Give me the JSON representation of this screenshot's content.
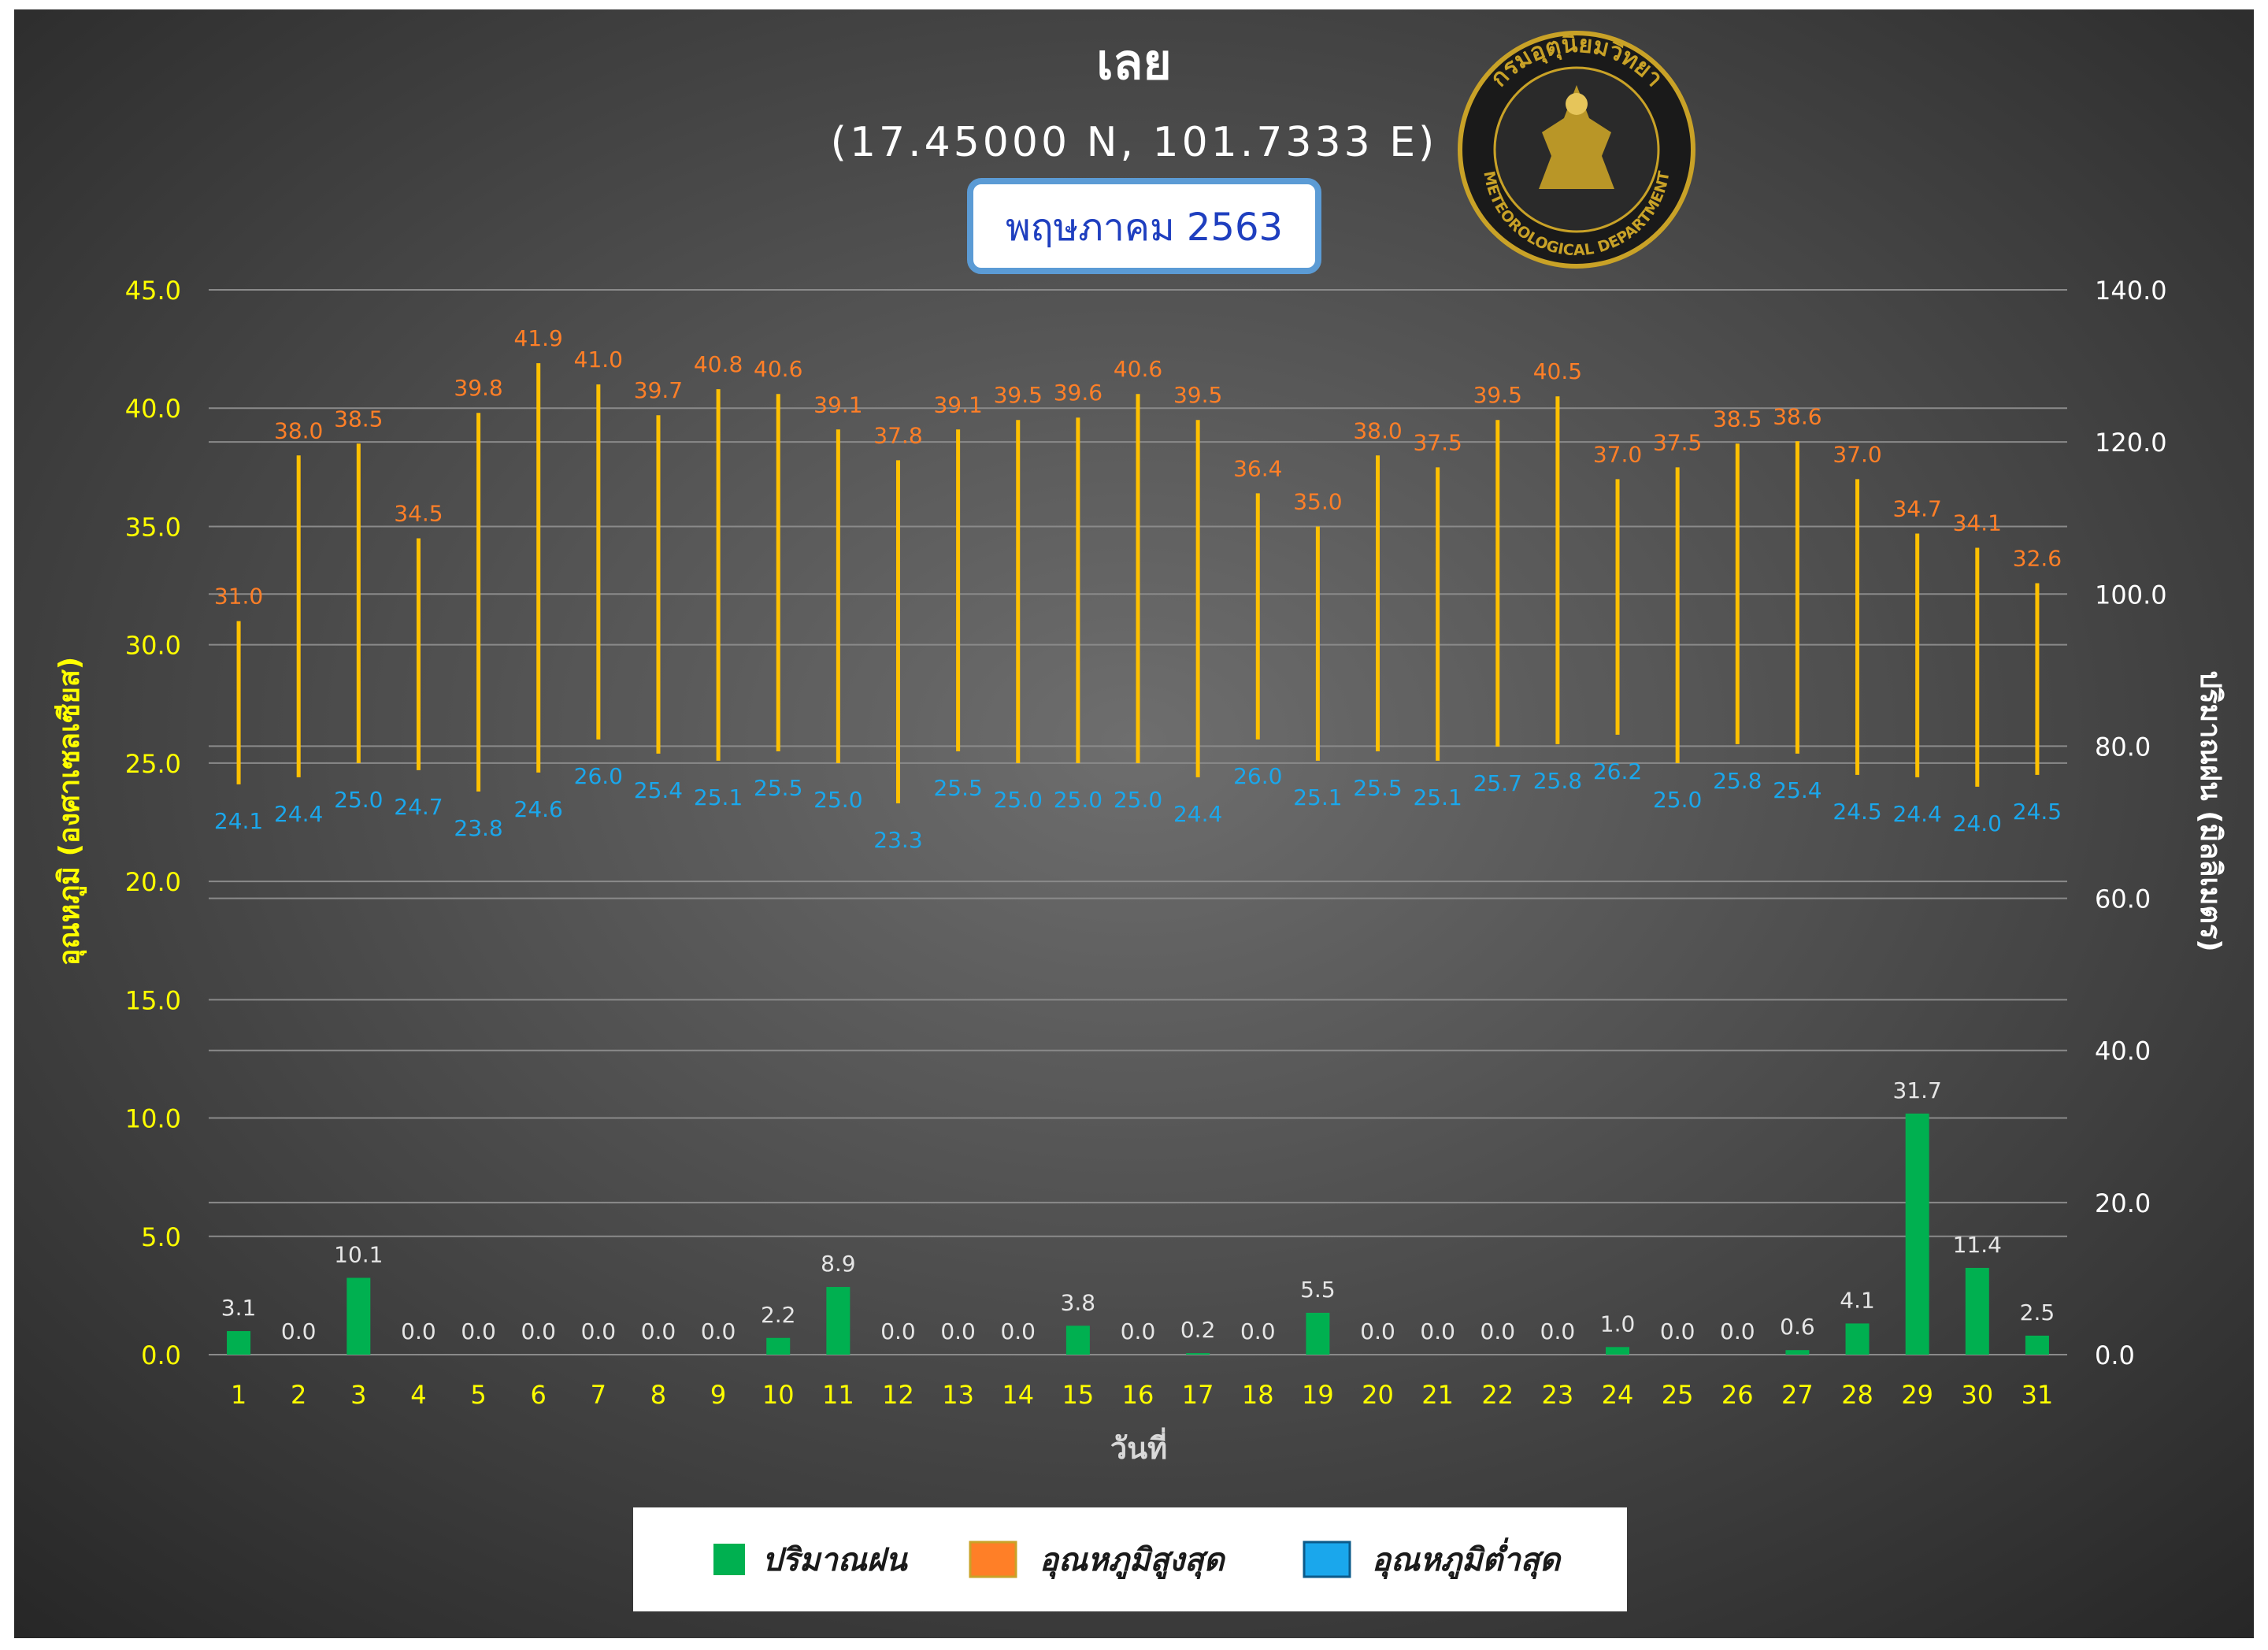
{
  "title": "เลย",
  "coordinates": "(17.45000 N, 101.7333 E)",
  "period": "พฤษภาคม 2563",
  "logo": {
    "text_top": "กรมอุตุนิยมวิทยา",
    "text_bottom": "METEOROLOGICAL DEPARTMENT"
  },
  "colors": {
    "background_center": "#6a6a6a",
    "background_edge": "#2a2a2a",
    "axis_left_text": "#ffff00",
    "axis_right_text": "#ffffff",
    "grid": "#8a8a8a",
    "range_line": "#ffc000",
    "max_label": "#ff7f27",
    "min_label": "#1aa7ec",
    "rain_bar": "#00b050",
    "rain_label": "#e6e6e6",
    "period_border": "#5b9bd5",
    "period_text": "#1f3fbf",
    "logo_gold": "#c9a227"
  },
  "chart_data": {
    "type": "bar",
    "xlabel": "วันที่",
    "ylabel_left": "อุณหภูมิ (องศาเซลเซียส)",
    "ylabel_right": "ปริมาณฝน (มิลลิเมตร)",
    "ylim_left": [
      0,
      45
    ],
    "ylim_right": [
      0,
      140
    ],
    "yticks_left": [
      "0.0",
      "5.0",
      "10.0",
      "15.0",
      "20.0",
      "25.0",
      "30.0",
      "35.0",
      "40.0",
      "45.0"
    ],
    "yticks_right": [
      "0.0",
      "20.0",
      "40.0",
      "60.0",
      "80.0",
      "100.0",
      "120.0",
      "140.0"
    ],
    "grid": true,
    "legend_position": "bottom",
    "categories": [
      "1",
      "2",
      "3",
      "4",
      "5",
      "6",
      "7",
      "8",
      "9",
      "10",
      "11",
      "12",
      "13",
      "14",
      "15",
      "16",
      "17",
      "18",
      "19",
      "20",
      "21",
      "22",
      "23",
      "24",
      "25",
      "26",
      "27",
      "28",
      "29",
      "30",
      "31"
    ],
    "series": [
      {
        "name": "ปริมาณฝน",
        "axis": "right",
        "values": [
          3.1,
          0.0,
          10.1,
          0.0,
          0.0,
          0.0,
          0.0,
          0.0,
          0.0,
          2.2,
          8.9,
          0.0,
          0.0,
          0.0,
          3.8,
          0.0,
          0.2,
          0.0,
          5.5,
          0.0,
          0.0,
          0.0,
          0.0,
          1.0,
          0.0,
          0.0,
          0.6,
          4.1,
          31.7,
          11.4,
          2.5
        ]
      },
      {
        "name": "อุณหภูมิสูงสุด",
        "axis": "left",
        "values": [
          31.0,
          38.0,
          38.5,
          34.5,
          39.8,
          41.9,
          41.0,
          39.7,
          40.8,
          40.6,
          39.1,
          37.8,
          39.1,
          39.5,
          39.6,
          40.6,
          39.5,
          36.4,
          35.0,
          38.0,
          37.5,
          39.5,
          40.5,
          37.0,
          37.5,
          38.5,
          38.6,
          37.0,
          34.7,
          34.1,
          32.6
        ]
      },
      {
        "name": "อุณหภูมิต่ำสุด",
        "axis": "left",
        "values": [
          24.1,
          24.4,
          25.0,
          24.7,
          23.8,
          24.6,
          26.0,
          25.4,
          25.1,
          25.5,
          25.0,
          23.3,
          25.5,
          25.0,
          25.0,
          25.0,
          24.4,
          26.0,
          25.1,
          25.5,
          25.1,
          25.7,
          25.8,
          26.2,
          25.0,
          25.8,
          25.4,
          24.5,
          24.4,
          24.0,
          24.5
        ]
      }
    ]
  }
}
